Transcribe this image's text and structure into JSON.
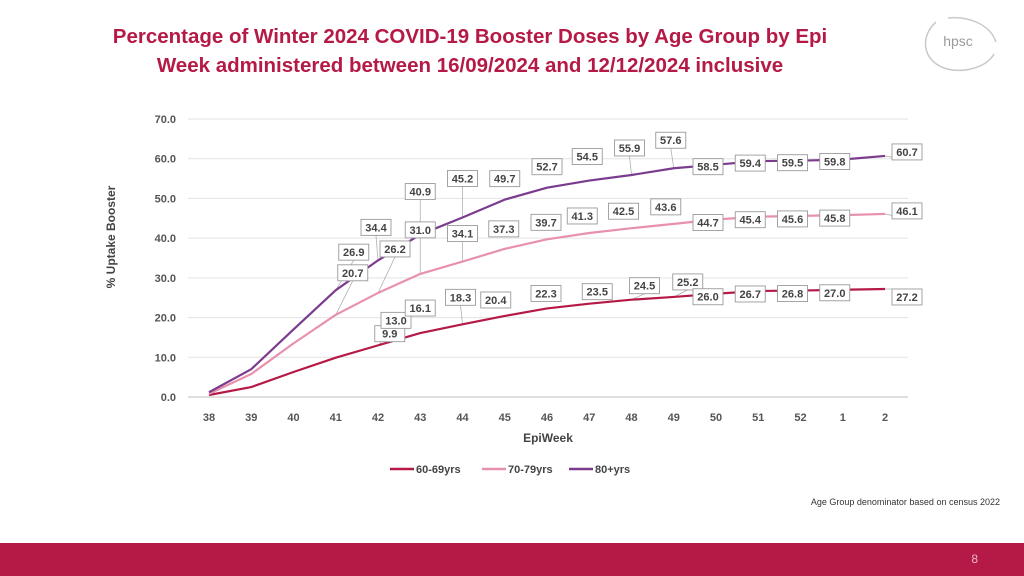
{
  "slide": {
    "title_line1": "Percentage of Winter 2024 COVID-19 Booster Doses by Age Group by Epi",
    "title_line2": "Week administered between 16/09/2024 and 12/12/2024 inclusive",
    "logo_text": "hpsc",
    "note": "Age Group denominator based on census 2022",
    "page_number": "8",
    "colors": {
      "brand": "#b51a46",
      "footer": "#b51a46"
    }
  },
  "chart_data": {
    "type": "line",
    "xlabel": "EpiWeek",
    "ylabel": "% Uptake Booster",
    "ylim": [
      0,
      70
    ],
    "yticks": [
      "0.0",
      "10.0",
      "20.0",
      "30.0",
      "40.0",
      "50.0",
      "60.0",
      "70.0"
    ],
    "categories": [
      "38",
      "39",
      "40",
      "41",
      "42",
      "43",
      "44",
      "45",
      "46",
      "47",
      "48",
      "49",
      "50",
      "51",
      "52",
      "1",
      "2"
    ],
    "grid": true,
    "legend": "bottom",
    "series": [
      {
        "name": "60-69yrs",
        "color": "#b51a46",
        "values": [
          0.5,
          2.5,
          6.3,
          9.9,
          13.0,
          16.1,
          18.3,
          20.4,
          22.3,
          23.5,
          24.5,
          25.2,
          26.0,
          26.7,
          26.8,
          27.0,
          27.2
        ],
        "labels": [
          null,
          null,
          null,
          "9.9",
          "13.0",
          "16.1",
          "18.3",
          "20.4",
          "22.3",
          "23.5",
          "24.5",
          "25.2",
          "26.0",
          "26.7",
          "26.8",
          "27.0",
          "27.2"
        ]
      },
      {
        "name": "70-79yrs",
        "color": "#e891ac",
        "values": [
          0.8,
          5.8,
          13.5,
          20.7,
          26.2,
          31.0,
          34.1,
          37.3,
          39.7,
          41.3,
          42.5,
          43.6,
          44.7,
          45.4,
          45.6,
          45.8,
          46.1
        ],
        "labels": [
          null,
          null,
          null,
          "20.7",
          "26.2",
          "31.0",
          "34.1",
          "37.3",
          "39.7",
          "41.3",
          "42.5",
          "43.6",
          "44.7",
          "45.4",
          "45.6",
          "45.8",
          "46.1"
        ]
      },
      {
        "name": "80+yrs",
        "color": "#7b3b8e",
        "values": [
          1.2,
          7.0,
          17.0,
          26.9,
          34.4,
          40.9,
          45.2,
          49.7,
          52.7,
          54.5,
          55.9,
          57.6,
          58.5,
          59.4,
          59.5,
          59.8,
          60.7
        ],
        "labels": [
          null,
          null,
          null,
          "26.9",
          "34.4",
          "40.9",
          "45.2",
          "49.7",
          "52.7",
          "54.5",
          "55.9",
          "57.6",
          "58.5",
          "59.4",
          "59.5",
          "59.8",
          "60.7"
        ]
      }
    ]
  }
}
